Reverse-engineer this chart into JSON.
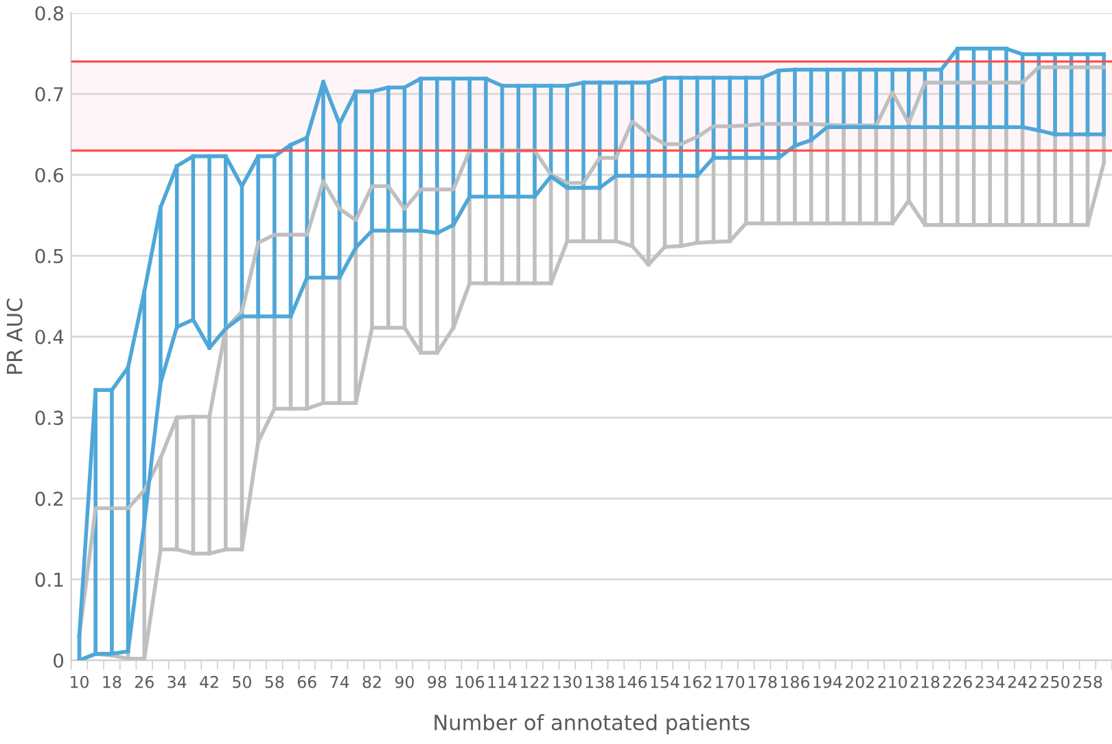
{
  "chart_data": {
    "type": "line",
    "xlabel": "Number of annotated patients",
    "ylabel": "PR AUC",
    "categories": [
      "10",
      null,
      "18",
      null,
      "26",
      null,
      "34",
      null,
      "42",
      null,
      "50",
      null,
      "58",
      null,
      "66",
      null,
      "74",
      null,
      "82",
      null,
      "90",
      null,
      "98",
      null,
      "106",
      null,
      "114",
      null,
      "122",
      null,
      "130",
      null,
      "138",
      null,
      "146",
      null,
      "154",
      null,
      "162",
      null,
      "170",
      null,
      "178",
      null,
      "186",
      null,
      "194",
      null,
      "202",
      null,
      "210",
      null,
      "218",
      null,
      "226",
      null,
      "234",
      null,
      "242",
      null,
      "250",
      null,
      "258",
      null
    ],
    "series": [
      {
        "color": "#4ea7d8",
        "values": [
          0.03,
          0.334,
          0.334,
          0.362,
          0.456,
          0.56,
          0.611,
          0.623,
          0.623,
          0.623,
          0.586,
          0.623,
          0.623,
          0.637,
          0.646,
          0.715,
          0.663,
          0.703,
          0.703,
          0.708,
          0.708,
          0.719,
          0.719,
          0.719,
          0.719,
          0.719,
          0.71,
          0.71,
          0.71,
          0.71,
          0.71,
          0.714,
          0.714,
          0.714,
          0.714,
          0.714,
          0.72,
          0.72,
          0.72,
          0.72,
          0.72,
          0.72,
          0.72,
          0.729,
          0.73,
          0.73,
          0.73,
          0.73,
          0.73,
          0.73,
          0.73,
          0.73,
          0.73,
          0.73,
          0.756,
          0.756,
          0.756,
          0.756,
          0.749,
          0.749,
          0.749,
          0.749,
          0.749,
          0.749
        ],
        "errors": [
          [
            0,
            0.03
          ],
          [
            0.008,
            0.334
          ],
          [
            0.008,
            0.334
          ],
          [
            0.011,
            0.362
          ],
          [
            0.17,
            0.456
          ],
          [
            0.343,
            0.56
          ],
          [
            0.412,
            0.611
          ],
          [
            0.421,
            0.623
          ],
          [
            0.386,
            0.623
          ],
          [
            0.41,
            0.623
          ],
          [
            0.425,
            0.586
          ],
          [
            0.425,
            0.623
          ],
          [
            0.425,
            0.623
          ],
          [
            0.425,
            0.637
          ],
          [
            0.473,
            0.646
          ],
          [
            0.473,
            0.715
          ],
          [
            0.473,
            0.663
          ],
          [
            0.51,
            0.703
          ],
          [
            0.531,
            0.703
          ],
          [
            0.531,
            0.708
          ],
          [
            0.531,
            0.708
          ],
          [
            0.531,
            0.719
          ],
          [
            0.528,
            0.719
          ],
          [
            0.538,
            0.719
          ],
          [
            0.573,
            0.719
          ],
          [
            0.573,
            0.719
          ],
          [
            0.573,
            0.71
          ],
          [
            0.573,
            0.71
          ],
          [
            0.573,
            0.71
          ],
          [
            0.598,
            0.71
          ],
          [
            0.584,
            0.71
          ],
          [
            0.584,
            0.714
          ],
          [
            0.584,
            0.714
          ],
          [
            0.599,
            0.714
          ],
          [
            0.599,
            0.714
          ],
          [
            0.599,
            0.714
          ],
          [
            0.599,
            0.72
          ],
          [
            0.599,
            0.72
          ],
          [
            0.599,
            0.72
          ],
          [
            0.621,
            0.72
          ],
          [
            0.621,
            0.72
          ],
          [
            0.621,
            0.72
          ],
          [
            0.621,
            0.72
          ],
          [
            0.621,
            0.729
          ],
          [
            0.636,
            0.73
          ],
          [
            0.643,
            0.73
          ],
          [
            0.659,
            0.73
          ],
          [
            0.659,
            0.73
          ],
          [
            0.659,
            0.73
          ],
          [
            0.659,
            0.73
          ],
          [
            0.659,
            0.73
          ],
          [
            0.659,
            0.73
          ],
          [
            0.659,
            0.73
          ],
          [
            0.659,
            0.73
          ],
          [
            0.659,
            0.756
          ],
          [
            0.659,
            0.756
          ],
          [
            0.659,
            0.756
          ],
          [
            0.659,
            0.756
          ],
          [
            0.659,
            0.749
          ],
          [
            0.655,
            0.749
          ],
          [
            0.65,
            0.749
          ],
          [
            0.65,
            0.749
          ],
          [
            0.65,
            0.749
          ],
          [
            0.65,
            0.749
          ]
        ]
      },
      {
        "color": "#4ea7d8",
        "values": [
          0,
          0.008,
          0.008,
          0.011,
          0.17,
          0.343,
          0.412,
          0.421,
          0.386,
          0.41,
          0.425,
          0.425,
          0.425,
          0.425,
          0.473,
          0.473,
          0.473,
          0.51,
          0.531,
          0.531,
          0.531,
          0.531,
          0.528,
          0.538,
          0.573,
          0.573,
          0.573,
          0.573,
          0.573,
          0.598,
          0.584,
          0.584,
          0.584,
          0.599,
          0.599,
          0.599,
          0.599,
          0.599,
          0.599,
          0.621,
          0.621,
          0.621,
          0.621,
          0.621,
          0.636,
          0.643,
          0.659,
          0.659,
          0.659,
          0.659,
          0.659,
          0.659,
          0.659,
          0.659,
          0.659,
          0.659,
          0.659,
          0.659,
          0.659,
          0.655,
          0.65,
          0.65,
          0.65,
          0.65
        ]
      },
      {
        "color": "#bfbfbf",
        "values": [
          0.03,
          0.188,
          0.188,
          0.188,
          0.21,
          0.25,
          0.3,
          0.301,
          0.301,
          0.41,
          0.431,
          0.516,
          0.526,
          0.526,
          0.526,
          0.592,
          0.558,
          0.544,
          0.586,
          0.586,
          0.558,
          0.582,
          0.582,
          0.582,
          0.63,
          0.63,
          0.63,
          0.63,
          0.63,
          0.6,
          0.59,
          0.59,
          0.621,
          0.621,
          0.666,
          0.65,
          0.638,
          0.638,
          0.647,
          0.66,
          0.66,
          0.661,
          0.663,
          0.663,
          0.663,
          0.663,
          0.662,
          0.661,
          0.661,
          0.661,
          0.702,
          0.664,
          0.714,
          0.714,
          0.714,
          0.714,
          0.714,
          0.714,
          0.714,
          0.733,
          0.733,
          0.733,
          0.733,
          0.733
        ],
        "errors": [
          [
            0,
            0.03
          ],
          [
            0.008,
            0.188
          ],
          [
            0.006,
            0.188
          ],
          [
            0.002,
            0.188
          ],
          [
            0.002,
            0.21
          ],
          [
            0.137,
            0.25
          ],
          [
            0.137,
            0.3
          ],
          [
            0.132,
            0.301
          ],
          [
            0.132,
            0.301
          ],
          [
            0.137,
            0.41
          ],
          [
            0.137,
            0.431
          ],
          [
            0.27,
            0.516
          ],
          [
            0.311,
            0.526
          ],
          [
            0.311,
            0.526
          ],
          [
            0.311,
            0.526
          ],
          [
            0.318,
            0.592
          ],
          [
            0.318,
            0.558
          ],
          [
            0.318,
            0.544
          ],
          [
            0.411,
            0.586
          ],
          [
            0.411,
            0.586
          ],
          [
            0.411,
            0.558
          ],
          [
            0.38,
            0.582
          ],
          [
            0.38,
            0.582
          ],
          [
            0.411,
            0.582
          ],
          [
            0.466,
            0.63
          ],
          [
            0.466,
            0.63
          ],
          [
            0.466,
            0.63
          ],
          [
            0.466,
            0.63
          ],
          [
            0.466,
            0.63
          ],
          [
            0.466,
            0.6
          ],
          [
            0.518,
            0.59
          ],
          [
            0.518,
            0.59
          ],
          [
            0.518,
            0.621
          ],
          [
            0.518,
            0.621
          ],
          [
            0.512,
            0.666
          ],
          [
            0.489,
            0.65
          ],
          [
            0.511,
            0.638
          ],
          [
            0.512,
            0.638
          ],
          [
            0.516,
            0.647
          ],
          [
            0.517,
            0.66
          ],
          [
            0.518,
            0.66
          ],
          [
            0.54,
            0.661
          ],
          [
            0.54,
            0.663
          ],
          [
            0.54,
            0.663
          ],
          [
            0.54,
            0.663
          ],
          [
            0.54,
            0.663
          ],
          [
            0.54,
            0.662
          ],
          [
            0.54,
            0.661
          ],
          [
            0.54,
            0.661
          ],
          [
            0.54,
            0.661
          ],
          [
            0.54,
            0.702
          ],
          [
            0.568,
            0.664
          ],
          [
            0.538,
            0.714
          ],
          [
            0.538,
            0.714
          ],
          [
            0.538,
            0.714
          ],
          [
            0.538,
            0.714
          ],
          [
            0.538,
            0.714
          ],
          [
            0.538,
            0.714
          ],
          [
            0.538,
            0.714
          ],
          [
            0.538,
            0.733
          ],
          [
            0.538,
            0.733
          ],
          [
            0.538,
            0.733
          ],
          [
            0.538,
            0.733
          ],
          [
            0.615,
            0.733
          ]
        ]
      },
      {
        "color": "#bfbfbf",
        "values": [
          0,
          0.008,
          0.006,
          0.002,
          0.002,
          0.137,
          0.137,
          0.132,
          0.132,
          0.137,
          0.137,
          0.27,
          0.311,
          0.311,
          0.311,
          0.318,
          0.318,
          0.318,
          0.411,
          0.411,
          0.411,
          0.38,
          0.38,
          0.411,
          0.466,
          0.466,
          0.466,
          0.466,
          0.466,
          0.466,
          0.518,
          0.518,
          0.518,
          0.518,
          0.512,
          0.489,
          0.511,
          0.512,
          0.516,
          0.517,
          0.518,
          0.54,
          0.54,
          0.54,
          0.54,
          0.54,
          0.54,
          0.54,
          0.54,
          0.54,
          0.54,
          0.568,
          0.538,
          0.538,
          0.538,
          0.538,
          0.538,
          0.538,
          0.538,
          0.538,
          0.538,
          0.538,
          0.538,
          0.615
        ]
      }
    ],
    "ref_lines": [
      {
        "axis": "y",
        "value": 0.74,
        "color": "#ff5050"
      },
      {
        "axis": "y",
        "value": 0.63,
        "color": "#ff5050"
      }
    ],
    "bands": [
      {
        "axis": "y",
        "from": 0.63,
        "to": 0.74,
        "color": "#fdf5f7"
      }
    ],
    "ylim": [
      0,
      0.8
    ],
    "yticks": [
      0,
      0.1,
      0.2,
      0.3,
      0.4,
      0.5,
      0.6,
      0.7,
      0.8
    ],
    "grid": "y"
  }
}
